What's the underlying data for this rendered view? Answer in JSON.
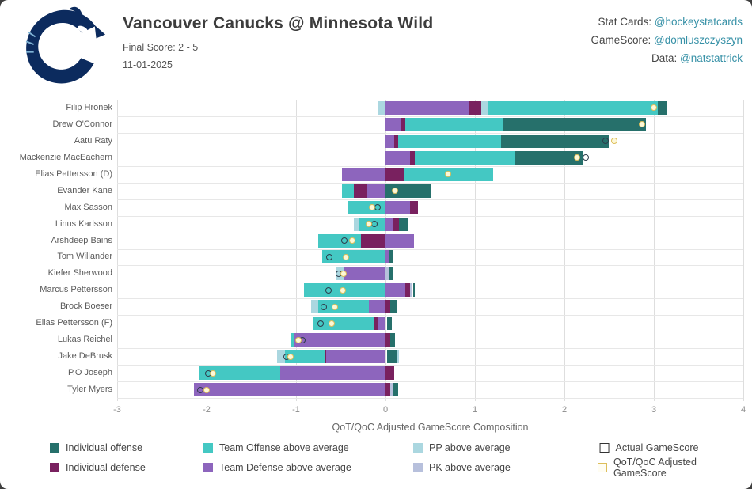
{
  "header": {
    "title": "Vancouver Canucks @ Minnesota Wild",
    "final_score": "Final Score: 2 - 5",
    "date": "11-01-2025",
    "logo": "vancouver-canucks-orca-logo",
    "credits": [
      {
        "label": "Stat Cards: ",
        "handle": "@hockeystatcards"
      },
      {
        "label": "GameScore: ",
        "handle": "@domluszczyszyn"
      },
      {
        "label": "Data: ",
        "handle": "@natstattrick"
      }
    ]
  },
  "colors": {
    "ind_off": "#26706b",
    "ind_def": "#79215f",
    "team_off": "#44c8c3",
    "team_def": "#8d65bd",
    "pp": "#abd7e0",
    "pk": "#b7c0dc",
    "actual_marker_border": "#2e3d4c",
    "adjusted_marker_border": "#ddbe5a",
    "adjusted_marker_fill": "#fdf8d8",
    "link": "#3791a7",
    "logo_navy": "#0c2b5e"
  },
  "chart_data": {
    "type": "bar",
    "orientation": "horizontal",
    "stacked": true,
    "title": "",
    "xlabel": "QoT/QoC Adjusted GameScore Composition",
    "ylabel": "",
    "xlim": [
      -3,
      4
    ],
    "xticks": [
      -3,
      -2,
      -1,
      0,
      1,
      2,
      3,
      4
    ],
    "grid": true,
    "segment_legend": {
      "ind_off": "Individual offense",
      "ind_def": "Individual defense",
      "team_off": "Team Offense above average",
      "team_def": "Team Defense above average",
      "pp": "PP above average",
      "pk": "PK above average"
    },
    "marker_legend": {
      "actual": "Actual GameScore",
      "adjusted": "QoT/QoC Adjusted GameScore"
    },
    "players": [
      {
        "name": "Filip Hronek",
        "segments": [
          [
            "pp",
            -0.08,
            0
          ],
          [
            "team_def",
            0,
            0.94
          ],
          [
            "ind_def",
            0.94,
            1.07
          ],
          [
            "pp",
            1.07,
            1.15
          ],
          [
            "team_off",
            1.15,
            3.04
          ],
          [
            "ind_off",
            3.04,
            3.14
          ]
        ],
        "actual": null,
        "adjusted": 3.0
      },
      {
        "name": "Drew O'Connor",
        "segments": [
          [
            "team_def",
            0,
            0.17
          ],
          [
            "ind_def",
            0.17,
            0.22
          ],
          [
            "team_off",
            0.22,
            1.32
          ],
          [
            "ind_off",
            1.32,
            2.91
          ]
        ],
        "actual": null,
        "adjusted": 2.87
      },
      {
        "name": "Aatu Raty",
        "segments": [
          [
            "team_def",
            0,
            0.1
          ],
          [
            "ind_def",
            0.1,
            0.14
          ],
          [
            "team_off",
            0.14,
            1.29
          ],
          [
            "ind_off",
            1.29,
            2.5
          ]
        ],
        "actual": 2.46,
        "adjusted": 2.56
      },
      {
        "name": "Mackenzie MacEachern",
        "segments": [
          [
            "team_def",
            0,
            0.27
          ],
          [
            "ind_def",
            0.27,
            0.33
          ],
          [
            "team_off",
            0.33,
            1.45
          ],
          [
            "ind_off",
            1.45,
            2.21
          ]
        ],
        "actual": 2.24,
        "adjusted": 2.14
      },
      {
        "name": "Elias Pettersson (D)",
        "segments": [
          [
            "team_def",
            -0.49,
            0
          ],
          [
            "ind_def",
            0,
            0.2
          ],
          [
            "team_off",
            0.2,
            1.2
          ]
        ],
        "actual": null,
        "adjusted": 0.7
      },
      {
        "name": "Evander Kane",
        "segments": [
          [
            "team_off",
            -0.49,
            -0.35
          ],
          [
            "ind_def",
            -0.35,
            -0.21
          ],
          [
            "team_def",
            -0.21,
            0
          ],
          [
            "ind_off",
            0,
            0.51
          ]
        ],
        "actual": null,
        "adjusted": 0.11
      },
      {
        "name": "Max Sasson",
        "segments": [
          [
            "team_off",
            -0.42,
            0
          ],
          [
            "team_def",
            0,
            0.27
          ],
          [
            "ind_def",
            0.27,
            0.36
          ]
        ],
        "actual": -0.09,
        "adjusted": -0.15
      },
      {
        "name": "Linus Karlsson",
        "segments": [
          [
            "pp",
            -0.35,
            -0.3
          ],
          [
            "team_off",
            -0.3,
            0
          ],
          [
            "team_def",
            0,
            0.09
          ],
          [
            "ind_def",
            0.09,
            0.15
          ],
          [
            "ind_off",
            0.15,
            0.25
          ]
        ],
        "actual": -0.12,
        "adjusted": -0.19
      },
      {
        "name": "Arshdeep Bains",
        "segments": [
          [
            "team_off",
            -0.75,
            -0.27
          ],
          [
            "ind_def",
            -0.27,
            0
          ],
          [
            "team_def",
            0,
            0.32
          ]
        ],
        "actual": -0.46,
        "adjusted": -0.37
      },
      {
        "name": "Tom Willander",
        "segments": [
          [
            "team_off",
            -0.71,
            0
          ],
          [
            "team_def",
            0,
            0.04
          ],
          [
            "ind_off",
            0.04,
            0.08
          ]
        ],
        "actual": -0.63,
        "adjusted": -0.44
      },
      {
        "name": "Kiefer Sherwood",
        "segments": [
          [
            "pp",
            -0.55,
            -0.46
          ],
          [
            "team_def",
            -0.46,
            0
          ],
          [
            "pk",
            0,
            0.04
          ],
          [
            "ind_off",
            0.04,
            0.08
          ]
        ],
        "actual": -0.52,
        "adjusted": -0.47
      },
      {
        "name": "Marcus Pettersson",
        "segments": [
          [
            "team_off",
            -0.91,
            0
          ],
          [
            "team_def",
            0,
            0.22
          ],
          [
            "ind_def",
            0.22,
            0.27
          ],
          [
            "pk",
            0.27,
            0.3
          ],
          [
            "ind_off",
            0.31,
            0.33
          ]
        ],
        "actual": -0.64,
        "adjusted": -0.48
      },
      {
        "name": "Brock Boeser",
        "segments": [
          [
            "pp",
            -0.83,
            -0.75
          ],
          [
            "team_off",
            -0.75,
            -0.19
          ],
          [
            "team_def",
            -0.19,
            0
          ],
          [
            "ind_def",
            0,
            0.05
          ],
          [
            "ind_off",
            0.05,
            0.13
          ]
        ],
        "actual": -0.69,
        "adjusted": -0.57
      },
      {
        "name": "Elias Pettersson (F)",
        "segments": [
          [
            "team_off",
            -0.81,
            -0.12
          ],
          [
            "ind_def",
            -0.12,
            -0.09
          ],
          [
            "team_def",
            -0.09,
            0
          ],
          [
            "ind_off",
            0.02,
            0.07
          ]
        ],
        "actual": -0.73,
        "adjusted": -0.6
      },
      {
        "name": "Lukas Reichel",
        "segments": [
          [
            "team_off",
            -1.06,
            -1.02
          ],
          [
            "team_def",
            -1.02,
            0
          ],
          [
            "ind_def",
            0,
            0.05
          ],
          [
            "ind_off",
            0.05,
            0.11
          ]
        ],
        "actual": -0.93,
        "adjusted": -0.97
      },
      {
        "name": "Jake DeBrusk",
        "segments": [
          [
            "pp",
            -1.21,
            -1.12
          ],
          [
            "team_off",
            -1.12,
            -0.68
          ],
          [
            "ind_def",
            -0.68,
            -0.66
          ],
          [
            "team_def",
            -0.66,
            0
          ],
          [
            "ind_off",
            0.02,
            0.12
          ],
          [
            "pp",
            0.12,
            0.15
          ]
        ],
        "actual": -1.11,
        "adjusted": -1.06
      },
      {
        "name": "P.O Joseph",
        "segments": [
          [
            "team_off",
            -2.09,
            -1.18
          ],
          [
            "team_def",
            -1.18,
            0
          ],
          [
            "ind_def",
            0,
            0.1
          ]
        ],
        "actual": -1.98,
        "adjusted": -1.93
      },
      {
        "name": "Tyler Myers",
        "segments": [
          [
            "team_def",
            -2.14,
            0
          ],
          [
            "ind_def",
            0,
            0.05
          ],
          [
            "pk",
            0.05,
            0.08
          ],
          [
            "ind_off",
            0.09,
            0.14
          ]
        ],
        "actual": -2.07,
        "adjusted": -2.0
      }
    ],
    "legend_rows": [
      [
        "ind_off",
        "team_off",
        "pp",
        "marker_actual"
      ],
      [
        "ind_def",
        "team_def",
        "pk",
        "marker_adjusted"
      ]
    ]
  }
}
